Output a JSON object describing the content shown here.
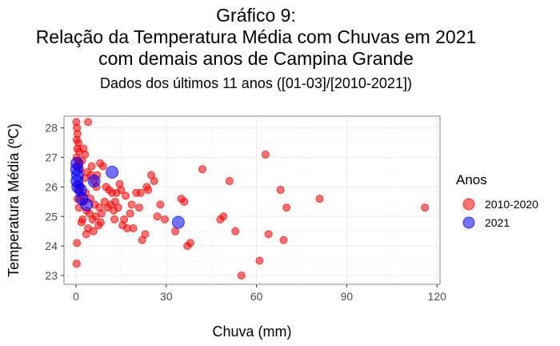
{
  "chart_data": {
    "type": "scatter",
    "title_lines": [
      "Gráfico 9:",
      "Relação da Temperatura Média com Chuvas em 2021",
      "com demais anos de Campina Grande"
    ],
    "subtitle": "Dados dos últimos 11 anos ([01-03]/[2010-2021])",
    "xlabel": "Chuva (mm)",
    "ylabel": "Temperatura Média (ºC)",
    "xlim": [
      -4,
      121
    ],
    "ylim": [
      22.7,
      28.4
    ],
    "x_ticks": [
      0,
      30,
      60,
      90,
      120
    ],
    "y_ticks": [
      23,
      24,
      25,
      26,
      27,
      28
    ],
    "grid": true,
    "legend": {
      "title": "Anos",
      "placement": "right"
    },
    "series": [
      {
        "name": "2010-2020",
        "color": "#FF0000",
        "points": [
          [
            0.1,
            28.2
          ],
          [
            0.3,
            28.0
          ],
          [
            0.5,
            27.8
          ],
          [
            0.2,
            27.6
          ],
          [
            0.8,
            27.5
          ],
          [
            0.4,
            27.3
          ],
          [
            1.0,
            27.2
          ],
          [
            0.2,
            27.0
          ],
          [
            0.6,
            26.9
          ],
          [
            1.2,
            26.8
          ],
          [
            0.3,
            26.7
          ],
          [
            2.5,
            27.3
          ],
          [
            3.0,
            27.1
          ],
          [
            2.0,
            26.9
          ],
          [
            4.0,
            28.2
          ],
          [
            5.0,
            26.4
          ],
          [
            6.0,
            26.2
          ],
          [
            7.0,
            26.4
          ],
          [
            8.0,
            26.8
          ],
          [
            9.0,
            26.7
          ],
          [
            10.0,
            26.0
          ],
          [
            11.0,
            25.9
          ],
          [
            12.0,
            25.8
          ],
          [
            13.0,
            25.5
          ],
          [
            14.0,
            25.3
          ],
          [
            15.0,
            25.9
          ],
          [
            16.0,
            24.9
          ],
          [
            17.0,
            24.6
          ],
          [
            18.0,
            25.1
          ],
          [
            19.0,
            24.6
          ],
          [
            20.0,
            25.8
          ],
          [
            21.0,
            25.3
          ],
          [
            22.0,
            24.2
          ],
          [
            23.0,
            24.4
          ],
          [
            24.0,
            25.9
          ],
          [
            25.0,
            26.4
          ],
          [
            26.0,
            26.2
          ],
          [
            27.0,
            25.0
          ],
          [
            28.0,
            25.4
          ],
          [
            29.5,
            24.9
          ],
          [
            33.0,
            24.5
          ],
          [
            35.0,
            25.6
          ],
          [
            36.0,
            25.5
          ],
          [
            37.0,
            24.0
          ],
          [
            38.0,
            24.1
          ],
          [
            42.0,
            26.6
          ],
          [
            48.0,
            24.9
          ],
          [
            49.0,
            25.0
          ],
          [
            51.0,
            26.2
          ],
          [
            53.0,
            24.5
          ],
          [
            55.0,
            23.0
          ],
          [
            61.0,
            23.5
          ],
          [
            63.0,
            27.1
          ],
          [
            64.0,
            24.4
          ],
          [
            68.0,
            25.9
          ],
          [
            69.0,
            24.2
          ],
          [
            70.0,
            25.3
          ],
          [
            81.0,
            25.6
          ],
          [
            116.0,
            25.3
          ],
          [
            0.3,
            24.1
          ],
          [
            0.2,
            23.4
          ],
          [
            1.5,
            26.0
          ],
          [
            2.0,
            25.7
          ],
          [
            2.5,
            25.5
          ],
          [
            3.5,
            25.2
          ],
          [
            4.5,
            25.1
          ],
          [
            5.5,
            24.9
          ],
          [
            6.5,
            25.0
          ],
          [
            7.5,
            24.7
          ],
          [
            4.0,
            24.6
          ],
          [
            1.0,
            25.3
          ],
          [
            1.8,
            24.8
          ],
          [
            3.2,
            25.8
          ],
          [
            4.8,
            25.6
          ],
          [
            6.2,
            25.4
          ],
          [
            7.8,
            25.3
          ],
          [
            8.5,
            25.1
          ],
          [
            9.5,
            25.5
          ],
          [
            10.5,
            25.3
          ],
          [
            11.5,
            25.4
          ],
          [
            12.5,
            25.2
          ],
          [
            13.5,
            25.8
          ],
          [
            14.5,
            26.1
          ],
          [
            5.2,
            26.7
          ],
          [
            6.8,
            26.0
          ],
          [
            2.8,
            26.3
          ],
          [
            3.8,
            26.5
          ],
          [
            0.9,
            25.9
          ],
          [
            1.4,
            26.6
          ],
          [
            16.5,
            25.7
          ],
          [
            18.5,
            25.4
          ],
          [
            21.5,
            25.8
          ],
          [
            23.5,
            26.0
          ],
          [
            15.5,
            24.7
          ],
          [
            12.8,
            24.9
          ],
          [
            0.5,
            25.6
          ],
          [
            0.7,
            26.1
          ],
          [
            2.2,
            24.9
          ],
          [
            3.4,
            24.4
          ],
          [
            5.8,
            24.5
          ],
          [
            8.2,
            24.8
          ]
        ]
      },
      {
        "name": "2021",
        "color": "#0000FF",
        "points": [
          [
            0.3,
            26.8
          ],
          [
            0.2,
            26.6
          ],
          [
            0.5,
            26.4
          ],
          [
            0.3,
            26.2
          ],
          [
            0.6,
            26.0
          ],
          [
            1.5,
            25.9
          ],
          [
            2.0,
            25.6
          ],
          [
            3.5,
            25.4
          ],
          [
            6.0,
            26.2
          ],
          [
            12.0,
            26.5
          ],
          [
            34.0,
            24.8
          ]
        ]
      }
    ]
  }
}
